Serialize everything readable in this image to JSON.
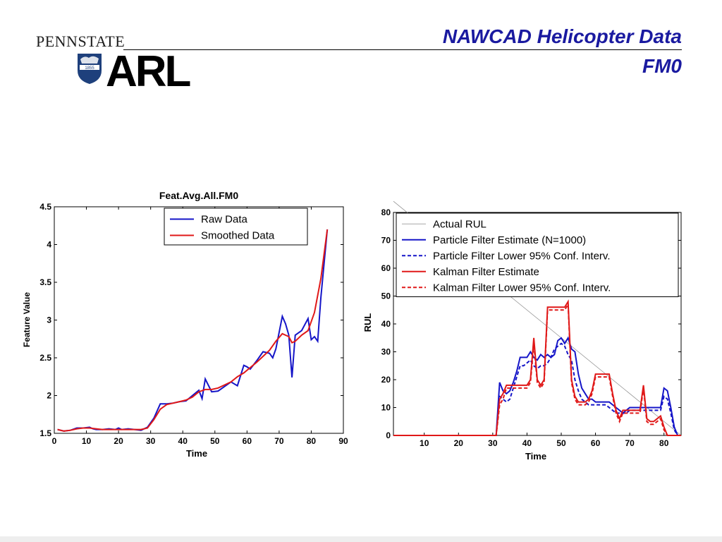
{
  "header": {
    "title_line1": "NAWCAD Helicopter Data",
    "title_line2": "FM0",
    "logo_top": "PENNSTATE",
    "logo_main": "ARL",
    "shield_text": "1855"
  },
  "chart_data": [
    {
      "type": "line",
      "title": "Feat.Avg.All.FM0",
      "xlabel": "Time",
      "ylabel": "Feature Value",
      "xlim": [
        0,
        90
      ],
      "ylim": [
        1.5,
        4.5
      ],
      "xticks": [
        0,
        10,
        20,
        30,
        40,
        50,
        60,
        70,
        80,
        90
      ],
      "yticks": [
        1.5,
        2,
        2.5,
        3,
        3.5,
        4,
        4.5
      ],
      "legend": "top-right",
      "series": [
        {
          "name": "Raw Data",
          "color": "#1515c8",
          "x": [
            1,
            3,
            5,
            7,
            9,
            11,
            12,
            13,
            15,
            17,
            19,
            20,
            21,
            23,
            25,
            27,
            29,
            31,
            33,
            35,
            37,
            39,
            41,
            43,
            45,
            46,
            47,
            49,
            51,
            53,
            55,
            57,
            59,
            60,
            61,
            63,
            65,
            67,
            68,
            69,
            71,
            72,
            73,
            74,
            75,
            77,
            79,
            80,
            81,
            82,
            83,
            85
          ],
          "y": [
            1.55,
            1.53,
            1.54,
            1.57,
            1.57,
            1.58,
            1.56,
            1.55,
            1.55,
            1.56,
            1.55,
            1.57,
            1.55,
            1.56,
            1.55,
            1.54,
            1.58,
            1.7,
            1.89,
            1.89,
            1.9,
            1.92,
            1.93,
            2.0,
            2.07,
            1.96,
            2.22,
            2.05,
            2.06,
            2.12,
            2.18,
            2.13,
            2.4,
            2.38,
            2.35,
            2.46,
            2.58,
            2.56,
            2.5,
            2.62,
            3.05,
            2.95,
            2.8,
            2.24,
            2.8,
            2.86,
            3.02,
            2.74,
            2.78,
            2.72,
            3.3,
            4.2
          ]
        },
        {
          "name": "Smoothed Data",
          "color": "#e01818",
          "x": [
            1,
            3,
            5,
            7,
            9,
            11,
            13,
            15,
            17,
            19,
            21,
            23,
            25,
            27,
            29,
            31,
            33,
            35,
            37,
            39,
            41,
            43,
            45,
            47,
            49,
            51,
            53,
            55,
            57,
            59,
            61,
            63,
            65,
            67,
            69,
            71,
            73,
            74,
            75,
            77,
            79,
            81,
            83,
            85
          ],
          "y": [
            1.55,
            1.53,
            1.54,
            1.56,
            1.57,
            1.57,
            1.56,
            1.55,
            1.55,
            1.55,
            1.55,
            1.55,
            1.55,
            1.55,
            1.57,
            1.68,
            1.82,
            1.88,
            1.9,
            1.92,
            1.94,
            1.98,
            2.05,
            2.08,
            2.08,
            2.1,
            2.14,
            2.18,
            2.25,
            2.3,
            2.37,
            2.44,
            2.52,
            2.6,
            2.72,
            2.82,
            2.78,
            2.7,
            2.72,
            2.8,
            2.86,
            3.1,
            3.55,
            4.2
          ]
        }
      ]
    },
    {
      "type": "line",
      "title": "",
      "xlabel": "Time",
      "ylabel": "RUL",
      "xlim": [
        1,
        85
      ],
      "ylim": [
        0,
        80
      ],
      "xticks": [
        10,
        20,
        30,
        40,
        50,
        60,
        70,
        80
      ],
      "yticks": [
        0,
        10,
        20,
        30,
        40,
        50,
        60,
        70,
        80
      ],
      "legend": "top-right",
      "series": [
        {
          "name": "Actual RUL",
          "color": "#8c8c8c",
          "style": "thin",
          "x": [
            1,
            85
          ],
          "y": [
            84,
            0
          ]
        },
        {
          "name": "Particle Filter Estimate (N=1000)",
          "color": "#1515c8",
          "style": "solid",
          "x": [
            1,
            31,
            32,
            33,
            34,
            35,
            36,
            37,
            38,
            39,
            40,
            41,
            42,
            43,
            44,
            45,
            46,
            47,
            48,
            49,
            50,
            51,
            52,
            53,
            54,
            55,
            56,
            57,
            58,
            59,
            60,
            61,
            62,
            63,
            64,
            65,
            66,
            67,
            68,
            69,
            70,
            71,
            72,
            73,
            74,
            75,
            76,
            77,
            78,
            79,
            80,
            81,
            82,
            83,
            84,
            85
          ],
          "y": [
            0,
            0,
            19,
            16,
            15,
            16,
            19,
            23,
            28,
            28,
            28,
            30,
            28,
            27,
            29,
            28,
            29,
            28,
            29,
            34,
            35,
            33,
            35,
            31,
            30,
            22,
            17,
            15,
            13,
            13,
            12,
            12,
            12,
            12,
            12,
            11,
            10,
            9,
            8,
            9,
            10,
            10,
            10,
            10,
            10,
            10,
            10,
            10,
            10,
            10,
            17,
            16,
            10,
            3,
            0,
            0
          ]
        },
        {
          "name": "Particle Filter Lower 95% Conf. Interv.",
          "color": "#1515c8",
          "style": "dashed",
          "x": [
            1,
            31,
            32,
            33,
            34,
            35,
            36,
            37,
            38,
            39,
            40,
            41,
            42,
            43,
            44,
            45,
            46,
            47,
            48,
            49,
            50,
            51,
            52,
            53,
            54,
            55,
            56,
            57,
            58,
            59,
            60,
            61,
            62,
            63,
            64,
            65,
            66,
            67,
            68,
            69,
            70,
            71,
            72,
            73,
            74,
            75,
            76,
            77,
            78,
            79,
            80,
            81,
            82,
            83,
            84,
            85
          ],
          "y": [
            0,
            0,
            14,
            13,
            12,
            13,
            17,
            21,
            25,
            25,
            26,
            27,
            25,
            24,
            25,
            25,
            26,
            28,
            31,
            32,
            33,
            32,
            29,
            27,
            20,
            16,
            13,
            12,
            11,
            11,
            11,
            11,
            11,
            11,
            10,
            9,
            8,
            8,
            8,
            8,
            9,
            9,
            9,
            9,
            9,
            9,
            9,
            9,
            9,
            9,
            14,
            13,
            8,
            2,
            0,
            0
          ]
        },
        {
          "name": "Kalman Filter Estimate",
          "color": "#e01818",
          "style": "solid",
          "x": [
            1,
            31,
            32,
            33,
            34,
            35,
            36,
            37,
            38,
            39,
            40,
            41,
            42,
            43,
            44,
            45,
            46,
            47,
            48,
            49,
            50,
            51,
            52,
            53,
            54,
            55,
            56,
            57,
            58,
            59,
            60,
            61,
            62,
            63,
            64,
            65,
            66,
            67,
            68,
            69,
            70,
            71,
            72,
            73,
            74,
            75,
            76,
            77,
            78,
            79,
            80,
            81,
            82,
            83,
            84,
            85
          ],
          "y": [
            0,
            0,
            13,
            15,
            18,
            18,
            18,
            18,
            18,
            18,
            18,
            20,
            35,
            20,
            18,
            20,
            46,
            46,
            46,
            46,
            46,
            46,
            48,
            20,
            14,
            12,
            12,
            12,
            13,
            16,
            22,
            22,
            22,
            22,
            22,
            15,
            9,
            6,
            9,
            9,
            9,
            9,
            9,
            9,
            18,
            6,
            5,
            5,
            6,
            7,
            3,
            0,
            0,
            0,
            0,
            0
          ]
        },
        {
          "name": "Kalman Filter Lower 95% Conf. Interv.",
          "color": "#e01818",
          "style": "dashed",
          "x": [
            1,
            31,
            32,
            33,
            34,
            35,
            36,
            37,
            38,
            39,
            40,
            41,
            42,
            43,
            44,
            45,
            46,
            47,
            48,
            49,
            50,
            51,
            52,
            53,
            54,
            55,
            56,
            57,
            58,
            59,
            60,
            61,
            62,
            63,
            64,
            65,
            66,
            67,
            68,
            69,
            70,
            71,
            72,
            73,
            74,
            75,
            76,
            77,
            78,
            79,
            80,
            81,
            82,
            83,
            84,
            85
          ],
          "y": [
            0,
            0,
            11,
            13,
            17,
            17,
            17,
            17,
            17,
            17,
            17,
            19,
            33,
            19,
            17,
            19,
            45,
            45,
            45,
            45,
            45,
            45,
            47,
            19,
            13,
            11,
            11,
            11,
            12,
            15,
            21,
            21,
            21,
            21,
            21,
            14,
            8,
            5,
            8,
            8,
            8,
            8,
            8,
            8,
            17,
            5,
            4,
            4,
            5,
            6,
            2,
            0,
            0,
            0,
            0,
            0
          ]
        }
      ]
    }
  ]
}
